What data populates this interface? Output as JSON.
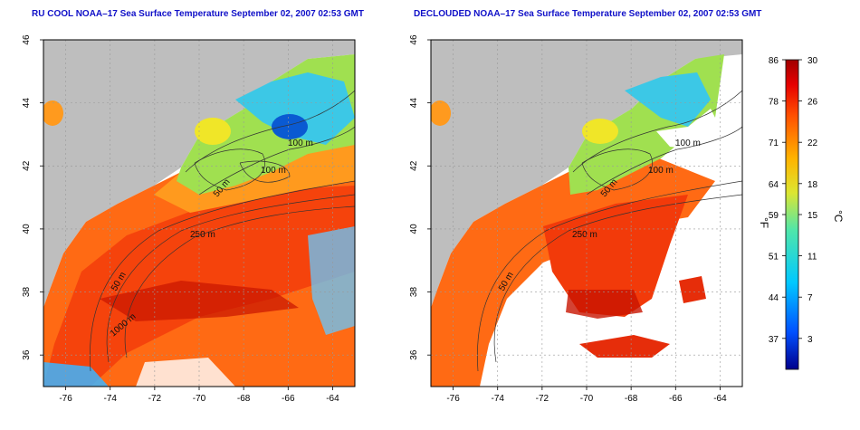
{
  "chart_data": [
    {
      "type": "heatmap",
      "title": "RU COOL NOAA–17 Sea Surface Temperature September 02, 2007 02:53 GMT",
      "xlabel": "",
      "ylabel": "",
      "xlim": [
        -77,
        -63
      ],
      "ylim": [
        35,
        46
      ],
      "x_ticks": [
        "-76",
        "-74",
        "-72",
        "-70",
        "-68",
        "-66",
        "-64"
      ],
      "y_ticks": [
        "36",
        "38",
        "40",
        "42",
        "44",
        "46"
      ],
      "contour_labels": [
        "100 m",
        "100 m",
        "50 m",
        "250 m",
        "50 m",
        "1000 m"
      ],
      "grid": "dotted"
    },
    {
      "type": "heatmap",
      "title": "DECLOUDED NOAA–17 Sea Surface Temperature September 02, 2007 02:53 GMT",
      "xlabel": "",
      "ylabel": "",
      "xlim": [
        -77,
        -63
      ],
      "ylim": [
        35,
        46
      ],
      "x_ticks": [
        "-76",
        "-74",
        "-72",
        "-70",
        "-68",
        "-66",
        "-64"
      ],
      "y_ticks": [
        "36",
        "38",
        "40",
        "42",
        "44",
        "46"
      ],
      "contour_labels": [
        "100 m",
        "100 m",
        "50 m",
        "250 m",
        "50 m"
      ],
      "grid": "dotted"
    }
  ],
  "colorbar": {
    "f_ticks": [
      "86",
      "78",
      "71",
      "64",
      "59",
      "51",
      "44",
      "37"
    ],
    "c_ticks": [
      "30",
      "26",
      "22",
      "18",
      "15",
      "11",
      "7",
      "3"
    ],
    "f_label": "°F",
    "c_label": "°C",
    "range_c": [
      0,
      30
    ],
    "colors": [
      "#00008c",
      "#0050ff",
      "#00c8ff",
      "#50e6aa",
      "#dce632",
      "#ffb400",
      "#ff5000",
      "#e60000",
      "#a00000"
    ]
  },
  "colors": {
    "land": "#bebebe",
    "nodata": "#ffffff",
    "title": "#1010c8"
  }
}
